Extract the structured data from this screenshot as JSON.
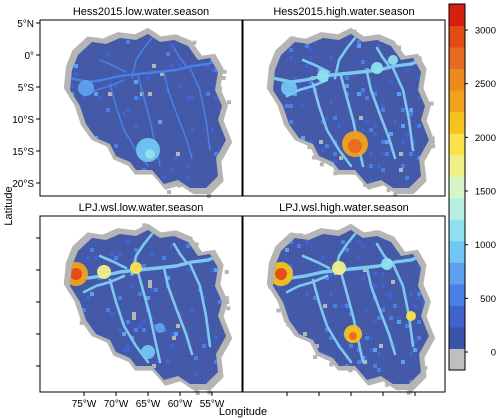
{
  "figure": {
    "xlabel": "Longitude",
    "ylabel": "Latitude",
    "panels": [
      {
        "id": "p1",
        "title": "Hess2015.low.water.season",
        "intensity": "low"
      },
      {
        "id": "p2",
        "title": "Hess2015.high.water.season",
        "intensity": "high"
      },
      {
        "id": "p3",
        "title": "LPJ.wsl.low.water.season",
        "intensity": "lowlpj"
      },
      {
        "id": "p4",
        "title": "LPJ.wsl.high.water.season",
        "intensity": "highlpj"
      }
    ],
    "lat_ticks": [
      "5°N",
      "0°",
      "5°S",
      "10°S",
      "15°S",
      "20°S"
    ],
    "lon_ticks": [
      "75°W",
      "70°W",
      "65°W",
      "60°W",
      "55°W"
    ]
  },
  "colorbar": {
    "ticks": [
      "0",
      "500",
      "1000",
      "1500",
      "2000",
      "2500",
      "3000"
    ],
    "colors": [
      "#bfbfbf",
      "#3a54a8",
      "#3f62cc",
      "#4a7fe6",
      "#5ea0f0",
      "#72c6f2",
      "#8fe0ee",
      "#b6f0e0",
      "#d8f5c6",
      "#f0f08a",
      "#fbe14a",
      "#f6c21e",
      "#f0a21e",
      "#ec8a1e",
      "#e86a1e",
      "#e34a16",
      "#d81e10"
    ]
  },
  "colors": {
    "background": "#ffffff",
    "ocean_gray": "#b5b5b5",
    "basin_blue": "#4257a6",
    "river": "#7ec8f0"
  }
}
